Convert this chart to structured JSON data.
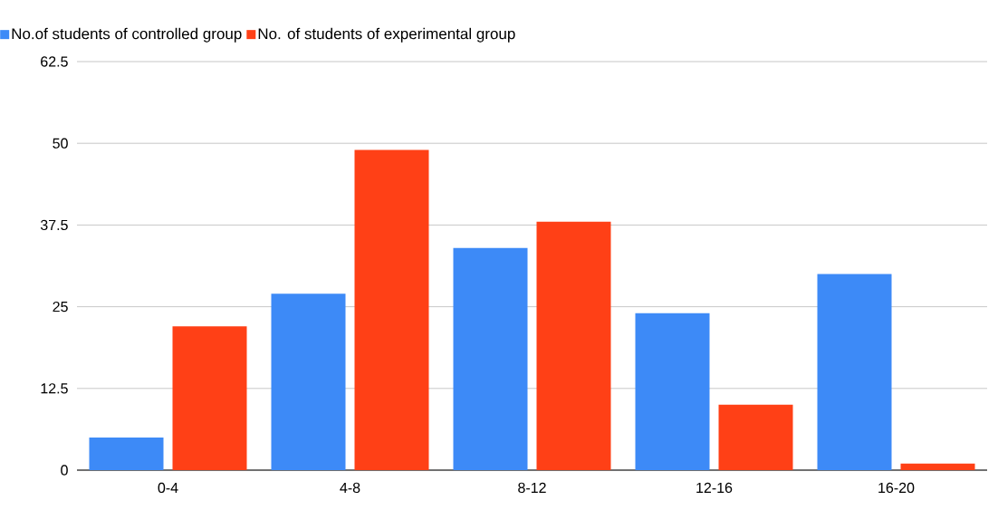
{
  "chart_data": {
    "type": "bar",
    "categories": [
      "0-4",
      "4-8",
      "8-12",
      "12-16",
      "16-20"
    ],
    "series": [
      {
        "name": "No.of students of controlled group",
        "color": "#3d8af7",
        "values": [
          5,
          27,
          34,
          24,
          30
        ]
      },
      {
        "name": "No. of students of experimental group",
        "color": "#ff4016",
        "values": [
          22,
          49,
          38,
          10,
          1
        ]
      }
    ],
    "ylim": [
      0,
      62.5
    ],
    "yticks": [
      0,
      12.5,
      25,
      37.5,
      50,
      62.5
    ],
    "grid": "y",
    "legend": "top left"
  }
}
